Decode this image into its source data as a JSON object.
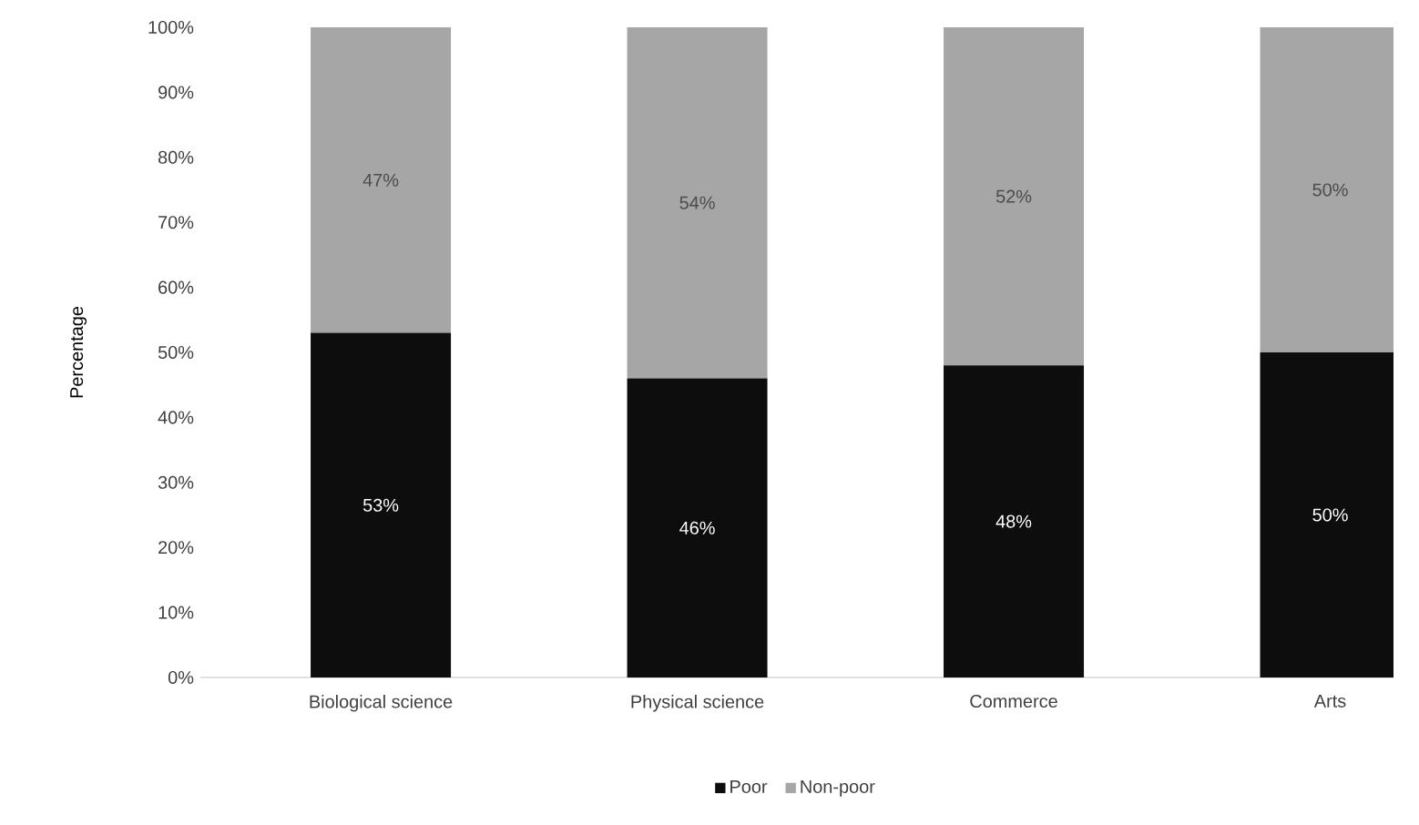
{
  "chart_data": {
    "type": "bar",
    "stacked": true,
    "ylabel": "Percentage",
    "categories": [
      "Biological science",
      "Physical science",
      "Commerce",
      "Arts"
    ],
    "series": [
      {
        "name": "Poor",
        "color": "#0d0d0d",
        "values": [
          53,
          46,
          48,
          50
        ],
        "value_labels": [
          "53%",
          "46%",
          "48%",
          "50%"
        ]
      },
      {
        "name": "Non-poor",
        "color": "#a6a6a6",
        "values": [
          47,
          54,
          52,
          50
        ],
        "value_labels": [
          "47%",
          "54%",
          "52%",
          "50%"
        ]
      }
    ],
    "ylim": [
      0,
      100
    ],
    "yticks": [
      {
        "value": 0,
        "label": "0%"
      },
      {
        "value": 10,
        "label": "10%"
      },
      {
        "value": 20,
        "label": "20%"
      },
      {
        "value": 30,
        "label": "30%"
      },
      {
        "value": 40,
        "label": "40%"
      },
      {
        "value": 50,
        "label": "50%"
      },
      {
        "value": 60,
        "label": "60%"
      },
      {
        "value": 70,
        "label": "70%"
      },
      {
        "value": 80,
        "label": "80%"
      },
      {
        "value": 90,
        "label": "90%"
      },
      {
        "value": 100,
        "label": "100%"
      }
    ],
    "legend": "bottom",
    "grid": false
  }
}
